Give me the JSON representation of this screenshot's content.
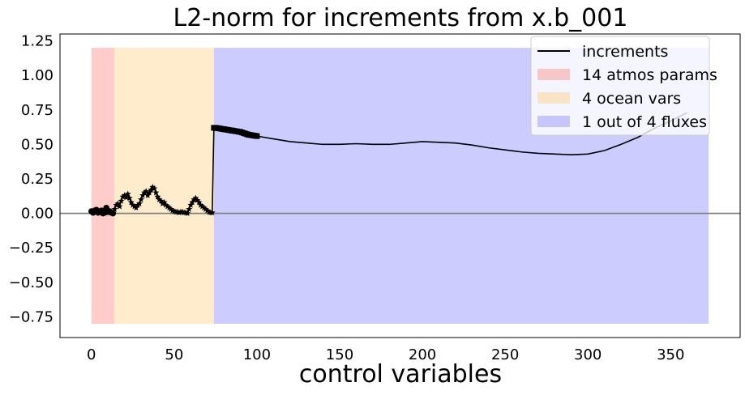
{
  "chart_data": {
    "type": "line",
    "title": "L2-norm for increments from x.b_001",
    "xlabel": "control variables",
    "ylabel": "",
    "xlim": [
      -19,
      392
    ],
    "ylim": [
      -0.9,
      1.3
    ],
    "xticks": [
      0,
      50,
      100,
      150,
      200,
      250,
      300,
      350
    ],
    "yticks": [
      -0.75,
      -0.5,
      -0.25,
      0.0,
      0.25,
      0.5,
      0.75,
      1.0,
      1.25
    ],
    "xtick_labels": [
      "0",
      "50",
      "100",
      "150",
      "200",
      "250",
      "300",
      "350"
    ],
    "ytick_labels": [
      "−0.75",
      "−0.50",
      "−0.25",
      "0.00",
      "0.25",
      "0.50",
      "0.75",
      "1.00",
      "1.25"
    ],
    "grid": false,
    "legend_position": "top-right",
    "hline": {
      "y": 0,
      "color": "#808080"
    },
    "spans": [
      {
        "name": "14 atmos params",
        "x0": 0,
        "x1": 14,
        "y0": -0.8,
        "y1": 1.2,
        "color": "#ffcccc"
      },
      {
        "name": "4 ocean vars",
        "x0": 14,
        "x1": 74,
        "y0": -0.8,
        "y1": 1.2,
        "color": "#ffeccc"
      },
      {
        "name": "1 out of 4 fluxes",
        "x0": 74,
        "x1": 373,
        "y0": -0.8,
        "y1": 1.2,
        "color": "#ccccff"
      }
    ],
    "series": [
      {
        "name": "increments",
        "color": "#000000",
        "x": [
          0,
          1,
          2,
          3,
          4,
          5,
          6,
          7,
          8,
          9,
          10,
          11,
          12,
          13,
          14,
          15,
          16,
          17,
          18,
          19,
          20,
          21,
          22,
          23,
          24,
          25,
          26,
          27,
          28,
          29,
          30,
          31,
          32,
          33,
          34,
          35,
          36,
          37,
          38,
          39,
          40,
          41,
          42,
          43,
          44,
          45,
          46,
          47,
          48,
          49,
          50,
          51,
          52,
          53,
          54,
          55,
          56,
          57,
          58,
          59,
          60,
          61,
          62,
          63,
          64,
          65,
          66,
          67,
          68,
          69,
          70,
          71,
          72,
          73,
          74,
          75,
          80,
          85,
          90,
          95,
          100,
          110,
          120,
          130,
          140,
          150,
          160,
          170,
          180,
          190,
          200,
          210,
          220,
          230,
          240,
          250,
          260,
          270,
          280,
          290,
          300,
          310,
          320,
          330,
          340,
          350,
          360
        ],
        "y": [
          0.015,
          0.005,
          0.02,
          0.025,
          0.005,
          0.01,
          0.02,
          0.0,
          0.005,
          0.04,
          0.01,
          0.015,
          0.005,
          0.0,
          0.03,
          0.06,
          0.07,
          0.05,
          0.09,
          0.12,
          0.13,
          0.115,
          0.14,
          0.11,
          0.08,
          0.06,
          0.05,
          0.04,
          0.06,
          0.07,
          0.1,
          0.13,
          0.15,
          0.16,
          0.13,
          0.15,
          0.17,
          0.19,
          0.18,
          0.15,
          0.12,
          0.1,
          0.09,
          0.07,
          0.08,
          0.06,
          0.05,
          0.04,
          0.03,
          0.02,
          0.015,
          0.01,
          0.01,
          0.005,
          0.01,
          0.01,
          0.005,
          0.005,
          0.0,
          0.03,
          0.06,
          0.08,
          0.1,
          0.11,
          0.095,
          0.08,
          0.06,
          0.05,
          0.04,
          0.03,
          0.02,
          0.01,
          0.005,
          0.005,
          0.62,
          0.62,
          0.61,
          0.6,
          0.59,
          0.57,
          0.56,
          0.54,
          0.52,
          0.51,
          0.5,
          0.5,
          0.505,
          0.5,
          0.5,
          0.51,
          0.52,
          0.515,
          0.51,
          0.495,
          0.475,
          0.46,
          0.445,
          0.435,
          0.43,
          0.425,
          0.43,
          0.455,
          0.5,
          0.55,
          0.615,
          0.67,
          0.73
        ],
        "markers": [
          {
            "symbol": "circle",
            "range": [
              0,
              14
            ]
          },
          {
            "symbol": "star",
            "range": [
              14,
              74
            ]
          },
          {
            "symbol": "square",
            "range": [
              74,
              100
            ]
          }
        ]
      }
    ],
    "legend": [
      {
        "label": "increments",
        "kind": "line",
        "color": "#000000"
      },
      {
        "label": "14 atmos params",
        "kind": "patch",
        "color": "#f7c6c6"
      },
      {
        "label": "4 ocean vars",
        "kind": "patch",
        "color": "#f9e4c8"
      },
      {
        "label": "1 out of 4 fluxes",
        "kind": "patch",
        "color": "#c6c6fb"
      }
    ]
  }
}
